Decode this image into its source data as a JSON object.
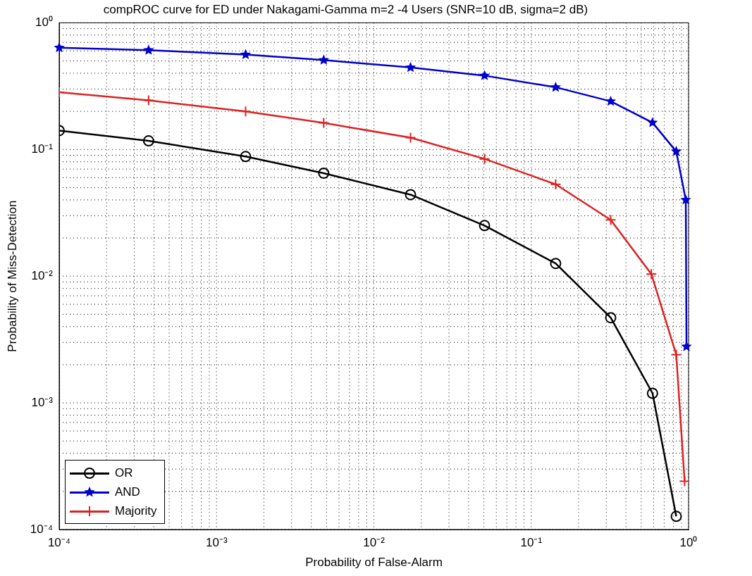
{
  "chart_data": {
    "type": "line",
    "title": "compROC curve for ED under Nakagami-Gamma m=2 -4 Users (SNR=10 dB, sigma=2 dB)",
    "xlabel": "Probability of False-Alarm",
    "ylabel": "Probability of Miss-Detection",
    "log": "xy",
    "grid": true,
    "legend": "bottom left",
    "line_style": "solid",
    "xlim": [
      0.0001,
      1
    ],
    "ylim": [
      0.0001,
      1
    ],
    "xticks": [
      {
        "value": 0.0001,
        "label": "10⁻⁴"
      },
      {
        "value": 0.001,
        "label": "10⁻³"
      },
      {
        "value": 0.01,
        "label": "10⁻²"
      },
      {
        "value": 0.1,
        "label": "10⁻¹"
      },
      {
        "value": 1,
        "label": "10⁰"
      }
    ],
    "yticks": [
      {
        "value": 0.0001,
        "label": "10⁻⁴"
      },
      {
        "value": 0.001,
        "label": "10⁻³"
      },
      {
        "value": 0.01,
        "label": "10⁻²"
      },
      {
        "value": 0.1,
        "label": "10⁻¹"
      },
      {
        "value": 1,
        "label": "10⁰"
      }
    ],
    "series": [
      {
        "name": "OR",
        "color": "#000000",
        "marker": "circle",
        "x": [
          0.0001,
          0.00037,
          0.00153,
          0.0048,
          0.0171,
          0.0505,
          0.143,
          0.32,
          0.59,
          0.835
        ],
        "values": [
          0.141,
          0.117,
          0.088,
          0.065,
          0.044,
          0.0251,
          0.0126,
          0.0047,
          0.00119,
          0.000127
        ]
      },
      {
        "name": "AND",
        "color": "#0000cc",
        "marker": "star",
        "x": [
          0.0001,
          0.00037,
          0.00153,
          0.0048,
          0.0171,
          0.0505,
          0.143,
          0.32,
          0.59,
          0.835,
          0.96,
          0.97
        ],
        "values": [
          0.636,
          0.608,
          0.561,
          0.508,
          0.444,
          0.383,
          0.31,
          0.24,
          0.163,
          0.0965,
          0.04,
          0.00278
        ]
      },
      {
        "name": "Majority",
        "color": "#dd2222",
        "marker": "cross",
        "x": [
          0.0001,
          0.00037,
          0.00153,
          0.0048,
          0.0171,
          0.0505,
          0.143,
          0.32,
          0.58,
          0.835,
          0.944
        ],
        "values": [
          0.283,
          0.244,
          0.2,
          0.162,
          0.124,
          0.0843,
          0.0531,
          0.0278,
          0.0104,
          0.0024,
          0.00024
        ]
      }
    ]
  }
}
